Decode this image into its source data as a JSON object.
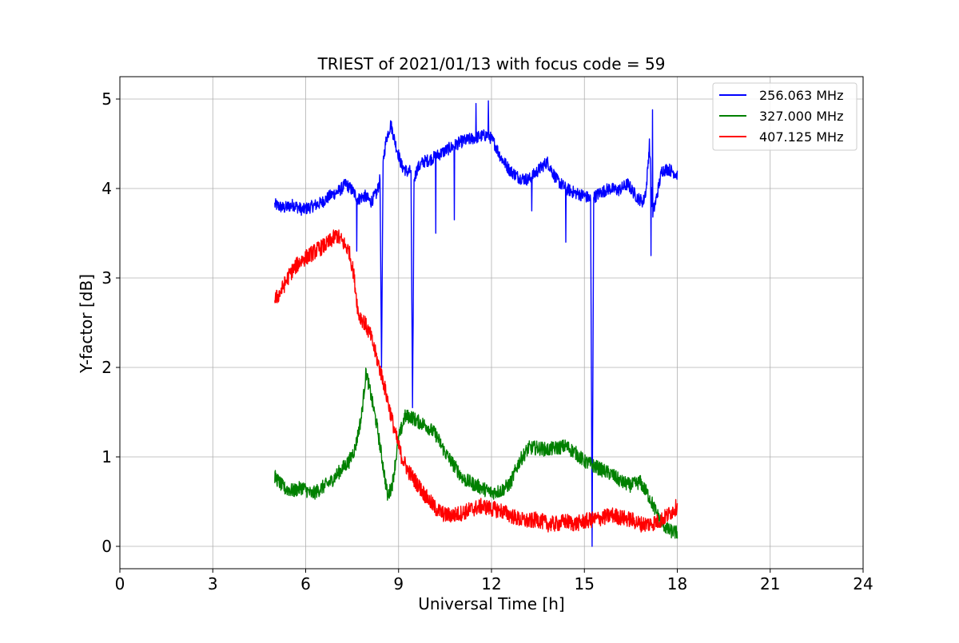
{
  "chart_data": {
    "type": "line",
    "title": "TRIEST of 2021/01/13 with focus code = 59",
    "xlabel": "Universal Time [h]",
    "ylabel": "Y-factor [dB]",
    "xlim": [
      0,
      24
    ],
    "ylim": [
      -0.25,
      5.25
    ],
    "xticks": [
      0,
      3,
      6,
      9,
      12,
      15,
      18,
      21,
      24
    ],
    "xtick_labels": [
      "0",
      "3",
      "6",
      "9",
      "12",
      "15",
      "18",
      "21",
      "24"
    ],
    "yticks": [
      0,
      1,
      2,
      3,
      4,
      5
    ],
    "ytick_labels": [
      "0",
      "1",
      "2",
      "3",
      "4",
      "5"
    ],
    "grid": true,
    "legend_position": "top-right",
    "series": [
      {
        "name": "256.063 MHz",
        "color": "#0000ff",
        "x": [
          5.0,
          5.3,
          5.6,
          5.9,
          6.2,
          6.5,
          6.8,
          7.1,
          7.3,
          7.5,
          7.7,
          7.9,
          8.1,
          8.3,
          8.4,
          8.45,
          8.5,
          8.6,
          8.75,
          8.9,
          9.1,
          9.3,
          9.4,
          9.45,
          9.5,
          9.6,
          9.8,
          10.0,
          10.2,
          10.4,
          10.6,
          10.8,
          11.0,
          11.3,
          11.6,
          11.9,
          12.1,
          12.3,
          12.6,
          12.9,
          13.2,
          13.5,
          13.8,
          14.1,
          14.4,
          14.7,
          15.0,
          15.2,
          15.25,
          15.3,
          15.5,
          15.8,
          16.1,
          16.4,
          16.7,
          16.9,
          17.0,
          17.1,
          17.2,
          17.3,
          17.5,
          17.7,
          17.9,
          18.0
        ],
        "y": [
          3.82,
          3.78,
          3.82,
          3.76,
          3.8,
          3.84,
          3.92,
          3.98,
          4.05,
          3.98,
          3.88,
          3.92,
          3.85,
          3.95,
          4.1,
          2.0,
          4.3,
          4.55,
          4.72,
          4.5,
          4.25,
          4.18,
          4.2,
          1.55,
          4.1,
          4.22,
          4.3,
          4.32,
          4.36,
          4.4,
          4.44,
          4.48,
          4.52,
          4.55,
          4.58,
          4.6,
          4.5,
          4.35,
          4.2,
          4.12,
          4.1,
          4.2,
          4.3,
          4.1,
          4.0,
          3.95,
          3.92,
          3.88,
          0.0,
          3.9,
          3.95,
          4.0,
          3.98,
          4.05,
          3.9,
          3.85,
          4.0,
          4.5,
          3.7,
          3.85,
          4.2,
          4.22,
          4.18,
          4.15
        ],
        "noise": 0.07,
        "spikes": [
          {
            "x": 7.65,
            "y": 3.3
          },
          {
            "x": 11.5,
            "y": 4.95
          },
          {
            "x": 11.9,
            "y": 4.98
          },
          {
            "x": 10.2,
            "y": 3.5
          },
          {
            "x": 10.8,
            "y": 3.65
          },
          {
            "x": 13.3,
            "y": 3.75
          },
          {
            "x": 14.4,
            "y": 3.4
          },
          {
            "x": 17.15,
            "y": 3.25
          },
          {
            "x": 17.2,
            "y": 4.88
          }
        ]
      },
      {
        "name": "327.000 MHz",
        "color": "#008000",
        "x": [
          5.0,
          5.3,
          5.6,
          5.9,
          6.2,
          6.5,
          6.8,
          7.1,
          7.4,
          7.6,
          7.8,
          7.95,
          8.1,
          8.3,
          8.5,
          8.65,
          8.8,
          9.0,
          9.2,
          9.4,
          9.6,
          9.9,
          10.2,
          10.5,
          10.8,
          11.1,
          11.4,
          11.7,
          12.0,
          12.3,
          12.6,
          12.9,
          13.2,
          13.5,
          13.8,
          14.1,
          14.4,
          14.7,
          15.0,
          15.3,
          15.6,
          15.9,
          16.2,
          16.5,
          16.8,
          17.1,
          17.4,
          17.7,
          18.0
        ],
        "y": [
          0.78,
          0.65,
          0.62,
          0.66,
          0.58,
          0.65,
          0.72,
          0.84,
          0.95,
          1.1,
          1.45,
          1.95,
          1.7,
          1.35,
          0.9,
          0.55,
          0.7,
          1.2,
          1.45,
          1.45,
          1.4,
          1.35,
          1.25,
          1.05,
          0.9,
          0.75,
          0.7,
          0.65,
          0.6,
          0.62,
          0.7,
          0.95,
          1.1,
          1.1,
          1.08,
          1.1,
          1.12,
          1.05,
          0.95,
          0.9,
          0.85,
          0.8,
          0.72,
          0.68,
          0.72,
          0.55,
          0.32,
          0.18,
          0.15
        ],
        "noise": 0.08,
        "spikes": []
      },
      {
        "name": "407.125 MHz",
        "color": "#ff0000",
        "x": [
          5.0,
          5.2,
          5.5,
          5.8,
          6.1,
          6.4,
          6.7,
          7.0,
          7.2,
          7.4,
          7.55,
          7.7,
          7.9,
          8.1,
          8.3,
          8.5,
          8.7,
          8.9,
          9.1,
          9.3,
          9.6,
          9.9,
          10.2,
          10.5,
          10.8,
          11.1,
          11.4,
          11.7,
          12.0,
          12.3,
          12.6,
          12.9,
          13.2,
          13.5,
          13.8,
          14.1,
          14.4,
          14.7,
          15.0,
          15.3,
          15.6,
          15.9,
          16.2,
          16.5,
          16.8,
          17.1,
          17.4,
          17.7,
          18.0
        ],
        "y": [
          2.75,
          2.85,
          3.05,
          3.18,
          3.25,
          3.32,
          3.38,
          3.48,
          3.4,
          3.3,
          3.05,
          2.6,
          2.5,
          2.35,
          2.1,
          1.85,
          1.55,
          1.25,
          1.0,
          0.85,
          0.7,
          0.55,
          0.42,
          0.35,
          0.35,
          0.38,
          0.42,
          0.45,
          0.42,
          0.4,
          0.35,
          0.3,
          0.28,
          0.3,
          0.25,
          0.25,
          0.28,
          0.25,
          0.28,
          0.3,
          0.32,
          0.35,
          0.32,
          0.3,
          0.25,
          0.25,
          0.28,
          0.35,
          0.45
        ],
        "noise": 0.09,
        "spikes": []
      }
    ]
  }
}
